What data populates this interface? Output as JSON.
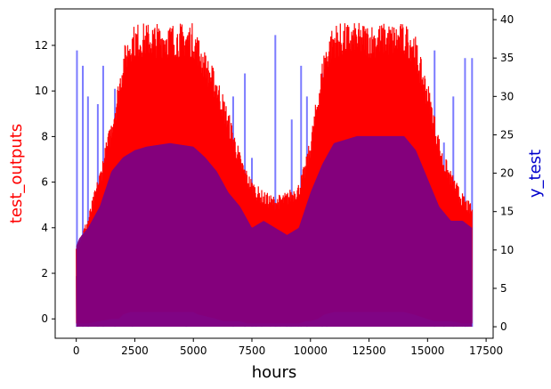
{
  "chart_data": {
    "type": "line",
    "xlabel": "hours",
    "ylabel_left": "test_outputs",
    "ylabel_right": "y_test",
    "colors": {
      "left_axis_label": "#ff0000",
      "right_axis_label": "#0000cc",
      "test_outputs_line": "#ff0000",
      "y_test_line": "#7b7bff",
      "overlap": "#800080"
    },
    "x_range": [
      0,
      16900
    ],
    "xlim": [
      -900,
      17800
    ],
    "left_ylim": [
      -0.85,
      13.6
    ],
    "right_ylim": [
      -1.5,
      41.4
    ],
    "x_ticks": [
      0,
      2500,
      5000,
      7500,
      10000,
      12500,
      15000,
      17500
    ],
    "x_tick_labels": [
      "0",
      "2500",
      "5000",
      "7500",
      "10000",
      "12500",
      "15000",
      "17500"
    ],
    "left_ticks": [
      0,
      2,
      4,
      6,
      8,
      10,
      12
    ],
    "left_tick_labels": [
      "0",
      "2",
      "4",
      "6",
      "8",
      "10",
      "12"
    ],
    "right_ticks": [
      0,
      5,
      10,
      15,
      20,
      25,
      30,
      35,
      40
    ],
    "right_tick_labels": [
      "0",
      "5",
      "10",
      "15",
      "20",
      "25",
      "30",
      "35",
      "40"
    ],
    "grid": false,
    "series": [
      {
        "axis": "left",
        "style": "dense_oscillating",
        "envelope_x": [
          0,
          500,
          1000,
          1500,
          1800,
          2000,
          2300,
          2600,
          3000,
          4000,
          5000,
          5200,
          5600,
          6000,
          6300,
          6600,
          7000,
          7300,
          7600,
          8000,
          8500,
          9000,
          9500,
          9800,
          10000,
          10300,
          10600,
          11000,
          12000,
          13000,
          14000,
          14400,
          14700,
          15000,
          15300,
          15600,
          16000,
          16500,
          16900
        ],
        "envelope_upper": [
          3.2,
          4.5,
          6.5,
          8.8,
          10.5,
          11.8,
          12.8,
          13.0,
          13.0,
          13.0,
          13.0,
          12.5,
          11.5,
          10.8,
          9.8,
          8.8,
          7.3,
          6.5,
          6.0,
          5.6,
          5.4,
          5.6,
          6.0,
          7.0,
          8.0,
          10.0,
          12.0,
          13.0,
          13.0,
          13.0,
          13.0,
          12.8,
          11.5,
          10.5,
          9.0,
          7.5,
          6.5,
          5.5,
          5.0
        ],
        "envelope_lower": [
          -0.2,
          -0.2,
          -0.1,
          0.0,
          0.0,
          0.2,
          0.3,
          0.3,
          0.3,
          0.3,
          0.3,
          0.2,
          0.1,
          0.0,
          -0.1,
          -0.1,
          -0.1,
          -0.2,
          -0.2,
          -0.2,
          -0.2,
          -0.2,
          -0.2,
          -0.1,
          -0.1,
          0.0,
          0.2,
          0.3,
          0.3,
          0.3,
          0.3,
          0.2,
          0.1,
          0.0,
          -0.1,
          -0.1,
          -0.1,
          -0.2,
          -0.2
        ]
      },
      {
        "axis": "right",
        "style": "dense_oscillating",
        "envelope_x": [
          0,
          500,
          1000,
          1500,
          2000,
          2500,
          3000,
          4000,
          5000,
          5500,
          6000,
          6500,
          7000,
          7500,
          8000,
          8500,
          9000,
          9500,
          10000,
          10500,
          11000,
          12000,
          13000,
          14000,
          14500,
          15000,
          15500,
          16000,
          16500,
          16900
        ],
        "envelope_upper": [
          12.0,
          14.0,
          17.0,
          22.0,
          24.0,
          25.0,
          25.5,
          26.0,
          25.5,
          24.0,
          22.0,
          19.0,
          17.0,
          14.0,
          15.0,
          14.0,
          13.0,
          14.0,
          19.0,
          23.0,
          26.0,
          27.0,
          27.0,
          27.0,
          25.0,
          21.0,
          17.0,
          15.0,
          15.0,
          14.0
        ],
        "envelope_lower": [
          0.0,
          0.0,
          0.0,
          0.0,
          0.0,
          0.0,
          0.0,
          0.0,
          0.0,
          0.0,
          0.0,
          0.0,
          0.0,
          0.0,
          0.0,
          0.0,
          0.0,
          0.0,
          0.0,
          0.0,
          0.0,
          0.0,
          0.0,
          0.0,
          0.0,
          0.0,
          0.0,
          0.0,
          0.0,
          0.0
        ],
        "spikes": [
          {
            "x": 30,
            "y": 36.0
          },
          {
            "x": 280,
            "y": 34.0
          },
          {
            "x": 500,
            "y": 30.0
          },
          {
            "x": 920,
            "y": 29.0
          },
          {
            "x": 1150,
            "y": 34.0
          },
          {
            "x": 1650,
            "y": 31.0
          },
          {
            "x": 2400,
            "y": 33.0
          },
          {
            "x": 4700,
            "y": 32.0
          },
          {
            "x": 6700,
            "y": 30.0
          },
          {
            "x": 7200,
            "y": 33.0
          },
          {
            "x": 7500,
            "y": 22.0
          },
          {
            "x": 8500,
            "y": 38.0
          },
          {
            "x": 9200,
            "y": 27.0
          },
          {
            "x": 9600,
            "y": 34.0
          },
          {
            "x": 9850,
            "y": 30.0
          },
          {
            "x": 10500,
            "y": 33.0
          },
          {
            "x": 10700,
            "y": 32.0
          },
          {
            "x": 15300,
            "y": 36.0
          },
          {
            "x": 15700,
            "y": 24.0
          },
          {
            "x": 16100,
            "y": 30.0
          },
          {
            "x": 16600,
            "y": 35.0
          },
          {
            "x": 16900,
            "y": 35.0
          }
        ]
      }
    ]
  }
}
